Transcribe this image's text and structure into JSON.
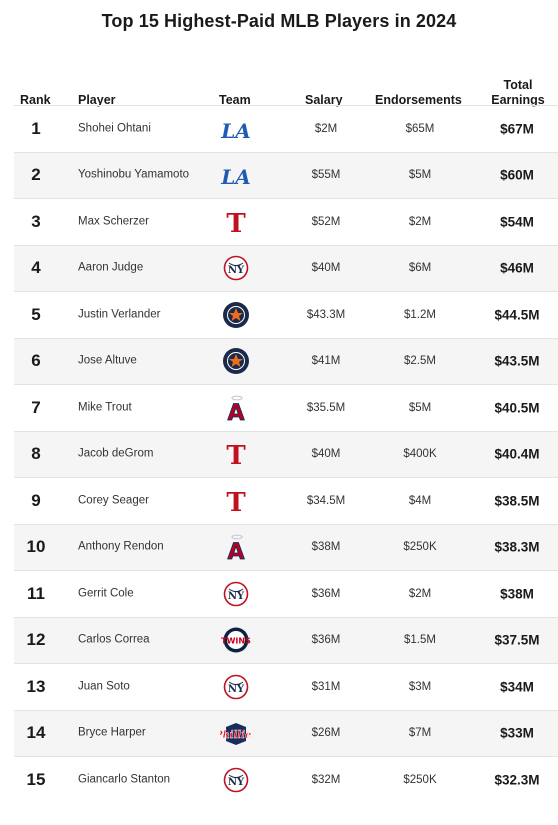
{
  "title": "Top 15 Highest-Paid MLB Players in 2024",
  "chart_data": {
    "type": "table",
    "columns": [
      "Rank",
      "Player",
      "Team",
      "Salary",
      "Endorsements",
      "Total Earnings"
    ],
    "rows": [
      {
        "rank": "1",
        "player": "Shohei Ohtani",
        "team_logo": "dodgers-logo-icon",
        "salary": "$2M",
        "endorsements": "$65M",
        "total": "$67M"
      },
      {
        "rank": "2",
        "player": "Yoshinobu Yamamoto",
        "team_logo": "dodgers-logo-icon",
        "salary": "$55M",
        "endorsements": "$5M",
        "total": "$60M"
      },
      {
        "rank": "3",
        "player": "Max Scherzer",
        "team_logo": "rangers-logo-icon",
        "salary": "$52M",
        "endorsements": "$2M",
        "total": "$54M"
      },
      {
        "rank": "4",
        "player": "Aaron Judge",
        "team_logo": "yankees-logo-icon",
        "salary": "$40M",
        "endorsements": "$6M",
        "total": "$46M"
      },
      {
        "rank": "5",
        "player": "Justin Verlander",
        "team_logo": "astros-logo-icon",
        "salary": "$43.3M",
        "endorsements": "$1.2M",
        "total": "$44.5M"
      },
      {
        "rank": "6",
        "player": "Jose Altuve",
        "team_logo": "astros-logo-icon",
        "salary": "$41M",
        "endorsements": "$2.5M",
        "total": "$43.5M"
      },
      {
        "rank": "7",
        "player": "Mike Trout",
        "team_logo": "angels-logo-icon",
        "salary": "$35.5M",
        "endorsements": "$5M",
        "total": "$40.5M"
      },
      {
        "rank": "8",
        "player": "Jacob deGrom",
        "team_logo": "rangers-logo-icon",
        "salary": "$40M",
        "endorsements": "$400K",
        "total": "$40.4M"
      },
      {
        "rank": "9",
        "player": "Corey Seager",
        "team_logo": "rangers-logo-icon",
        "salary": "$34.5M",
        "endorsements": "$4M",
        "total": "$38.5M"
      },
      {
        "rank": "10",
        "player": "Anthony Rendon",
        "team_logo": "angels-logo-icon",
        "salary": "$38M",
        "endorsements": "$250K",
        "total": "$38.3M"
      },
      {
        "rank": "11",
        "player": "Gerrit Cole",
        "team_logo": "yankees-logo-icon",
        "salary": "$36M",
        "endorsements": "$2M",
        "total": "$38M"
      },
      {
        "rank": "12",
        "player": "Carlos Correa",
        "team_logo": "twins-logo-icon",
        "salary": "$36M",
        "endorsements": "$1.5M",
        "total": "$37.5M"
      },
      {
        "rank": "13",
        "player": "Juan Soto",
        "team_logo": "yankees-logo-icon",
        "salary": "$31M",
        "endorsements": "$3M",
        "total": "$34M"
      },
      {
        "rank": "14",
        "player": "Bryce Harper",
        "team_logo": "phillies-logo-icon",
        "salary": "$26M",
        "endorsements": "$7M",
        "total": "$33M"
      },
      {
        "rank": "15",
        "player": "Giancarlo Stanton",
        "team_logo": "yankees-logo-icon",
        "salary": "$32M",
        "endorsements": "$250K",
        "total": "$32.3M"
      }
    ]
  },
  "colors": {
    "dodgers": "#1e5cb3",
    "rangers": "#c0111f",
    "yankees": "#c0111f",
    "astros": "#1b2a4a",
    "astros_accent": "#eb6e1f",
    "angels": "#ba0021",
    "angels_navy": "#003263",
    "twins": "#0c2340",
    "phillies": "#e81828",
    "row_alt": "#f5f5f5"
  }
}
